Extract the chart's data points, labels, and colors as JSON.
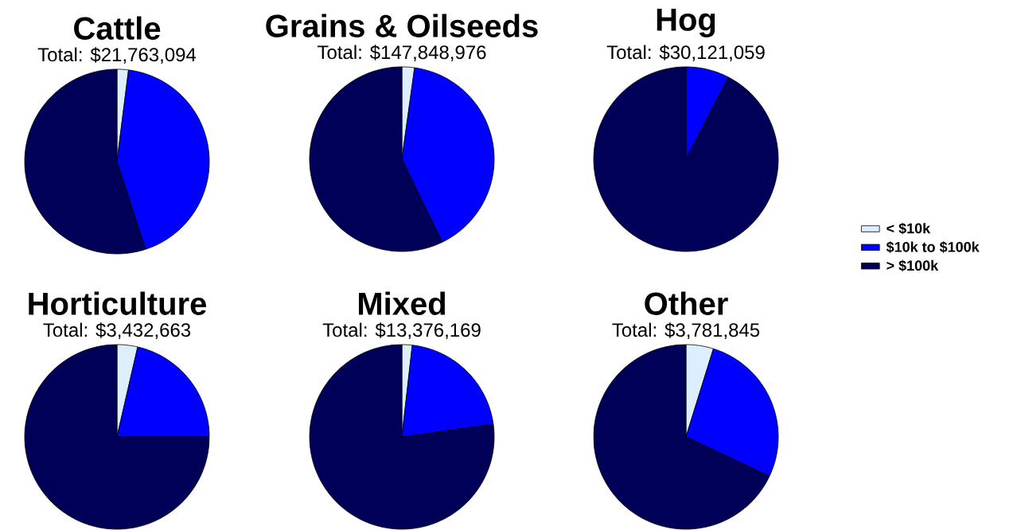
{
  "chart_data": [
    {
      "type": "pie",
      "title": "Cattle",
      "subtitle": "Total: $21,763,094",
      "categories": [
        null,
        null,
        null
      ],
      "values": [
        2,
        43,
        55
      ],
      "colors": [
        "#ddeeff",
        "#0000ff",
        "#000058"
      ]
    },
    {
      "type": "pie",
      "title": "Grains & Oilseeds",
      "subtitle": "Total: $147,848,976",
      "categories": [
        null,
        null,
        null
      ],
      "values": [
        2.2,
        40.6,
        57.2
      ],
      "colors": [
        "#ddeeff",
        "#0000ff",
        "#000058"
      ]
    },
    {
      "type": "pie",
      "title": "Hog",
      "subtitle": "Total: $30,121,059",
      "categories": [
        "< $10k",
        "$10k to $100k",
        "> $100k"
      ],
      "values": [
        0,
        7.6,
        92.4
      ],
      "colors": [
        "#ddeeff",
        "#0000ff",
        "#000058"
      ],
      "legend": "right"
    },
    {
      "type": "pie",
      "title": "Horticulture",
      "subtitle": "Total: $3,432,663",
      "categories": [
        null,
        null,
        null
      ],
      "values": [
        3.6,
        21.4,
        75
      ],
      "colors": [
        "#ddeeff",
        "#0000ff",
        "#000058"
      ]
    },
    {
      "type": "pie",
      "title": "Mixed",
      "subtitle": "Total: $13,376,169",
      "categories": [
        null,
        null,
        null
      ],
      "values": [
        1.8,
        21,
        77.2
      ],
      "colors": [
        "#ddeeff",
        "#0000ff",
        "#000058"
      ]
    },
    {
      "type": "pie",
      "title": "Other",
      "subtitle": "Total: $3,781,845",
      "categories": [
        null,
        null,
        null
      ],
      "values": [
        4.8,
        27.2,
        68
      ],
      "colors": [
        "#ddeeff",
        "#0000ff",
        "#000058"
      ]
    }
  ]
}
